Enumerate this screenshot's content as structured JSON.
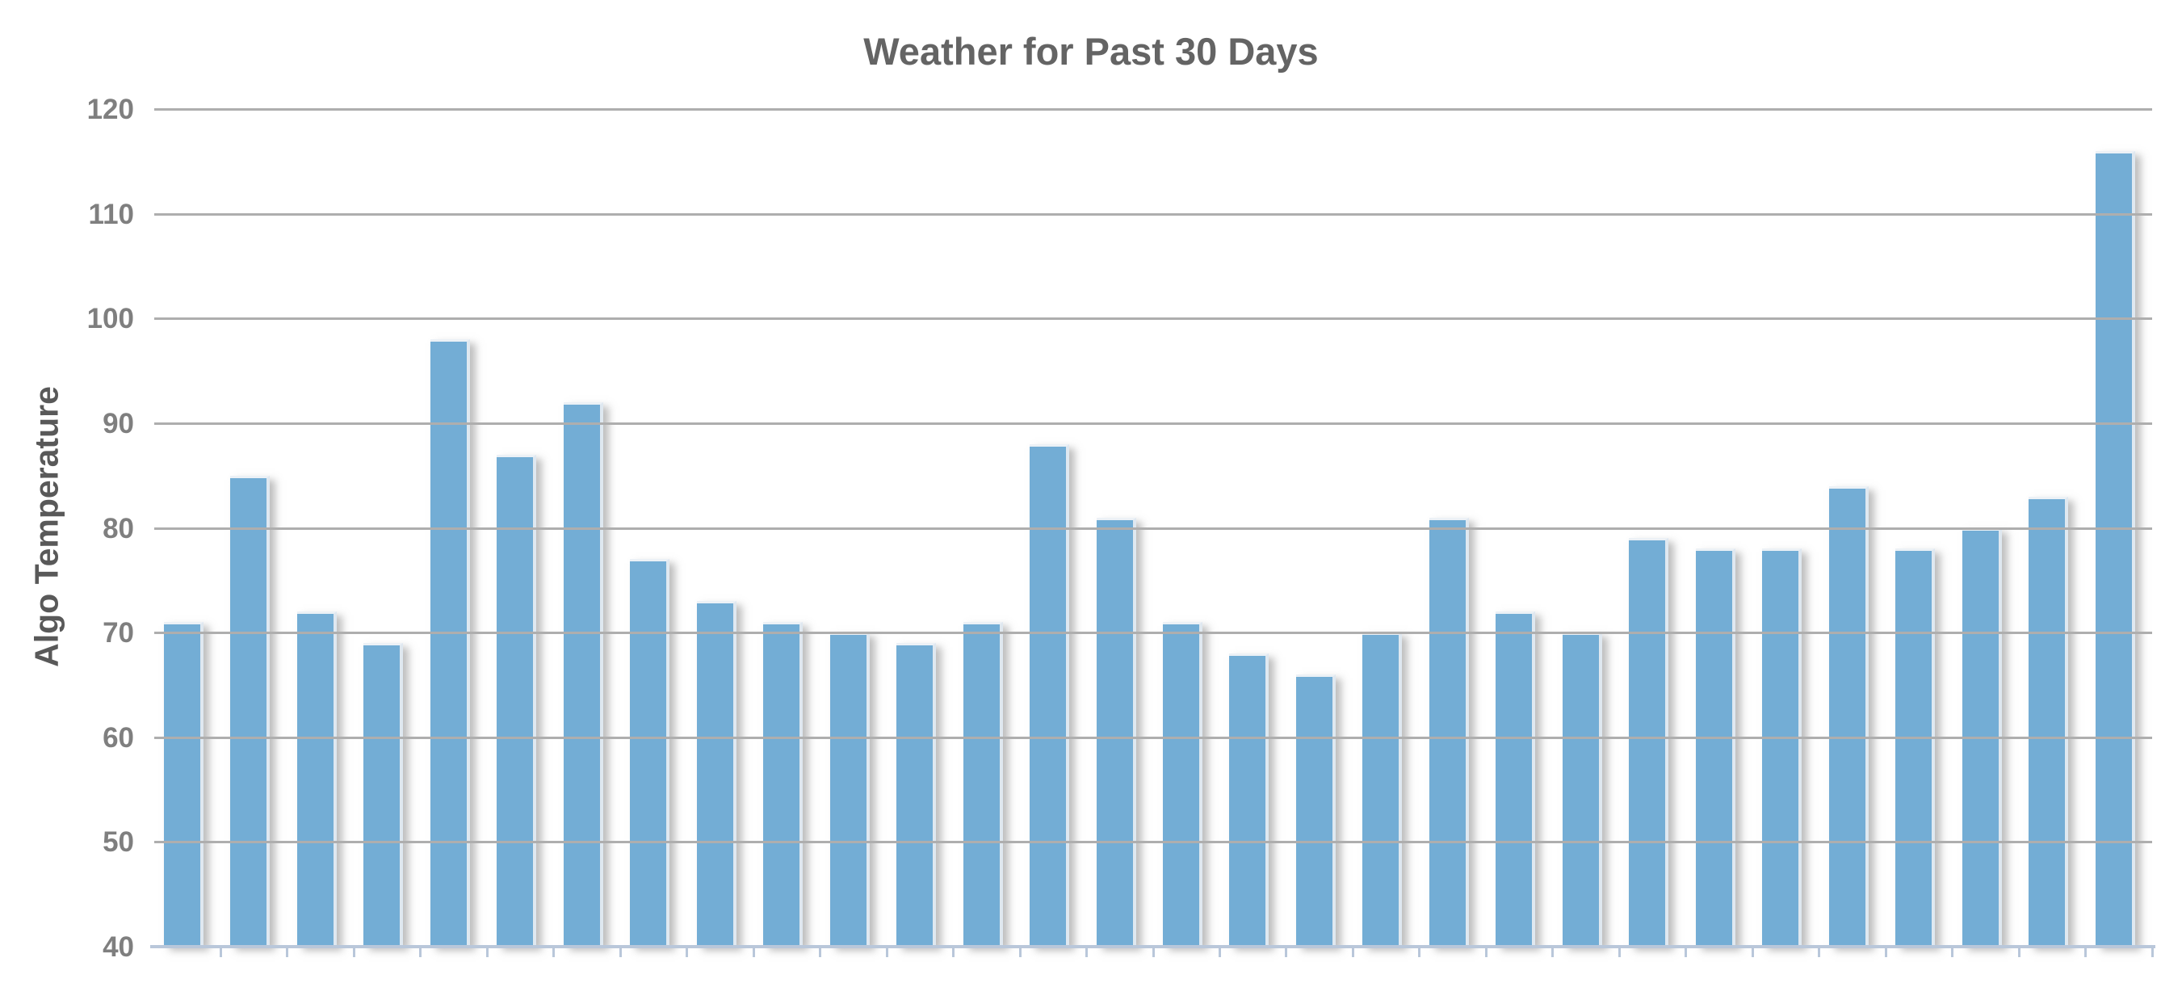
{
  "title": "Weather for Past 30 Days",
  "y_axis": {
    "label": "Algo Temperature",
    "tick_labels": [
      "120",
      "110",
      "100",
      "90",
      "80",
      "70",
      "60",
      "50",
      "40"
    ]
  },
  "x_axis": {
    "tick_labels": []
  },
  "colors": {
    "bar": "#73add5",
    "bar_bevel": "#ecf1f6",
    "gridline": "#aeaeae",
    "axis_line": "#b9c7da",
    "title_text": "#646464",
    "y_axis_title_text": "#595959",
    "tick_label_text": "#7f7f7f",
    "background": "#ffffff"
  },
  "chart_data": {
    "type": "bar",
    "title": "Weather for Past 30 Days",
    "xlabel": "",
    "ylabel": "Algo Temperature",
    "ylim": [
      40,
      120
    ],
    "yticks": [
      40,
      50,
      60,
      70,
      80,
      90,
      100,
      110,
      120
    ],
    "grid": "horizontal",
    "legend": "none",
    "n_bars": 30,
    "values": [
      71,
      85,
      72,
      69,
      98,
      87,
      92,
      77,
      73,
      71,
      70,
      69,
      71,
      88,
      81,
      71,
      68,
      66,
      70,
      81,
      72,
      70,
      79,
      78,
      78,
      84,
      78,
      80,
      83,
      116
    ]
  }
}
